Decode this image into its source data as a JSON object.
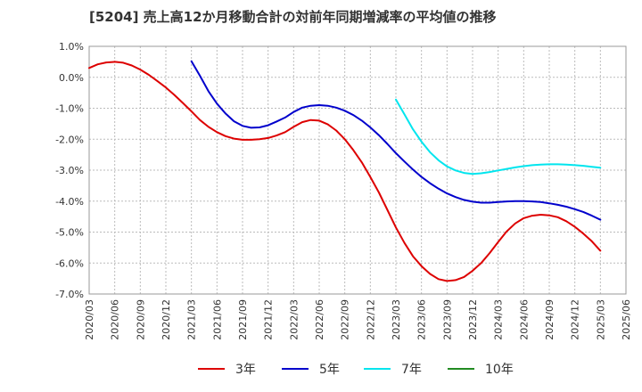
{
  "chart_data": {
    "type": "line",
    "title": "[5204]  売上高12か月移動合計の対前年同期増減率の平均値の推移",
    "xlabel": "",
    "ylabel": "",
    "ylim": [
      -7.0,
      1.0
    ],
    "y_ticks": [
      "1.0%",
      "0.0%",
      "-1.0%",
      "-2.0%",
      "-3.0%",
      "-4.0%",
      "-5.0%",
      "-6.0%",
      "-7.0%"
    ],
    "x_ticks": [
      "2020/03",
      "2020/06",
      "2020/09",
      "2020/12",
      "2021/03",
      "2021/06",
      "2021/09",
      "2021/12",
      "2022/03",
      "2022/06",
      "2022/09",
      "2022/12",
      "2023/03",
      "2023/06",
      "2023/09",
      "2023/12",
      "2024/03",
      "2024/06",
      "2024/09",
      "2024/12",
      "2025/03",
      "2025/06"
    ],
    "grid": true,
    "legend_position": "bottom",
    "series": [
      {
        "name": "3年",
        "color": "#dd0000",
        "x": [
          "2020/03",
          "2020/04",
          "2020/05",
          "2020/06",
          "2020/07",
          "2020/08",
          "2020/09",
          "2020/10",
          "2020/11",
          "2020/12",
          "2021/01",
          "2021/02",
          "2021/03",
          "2021/04",
          "2021/05",
          "2021/06",
          "2021/07",
          "2021/08",
          "2021/09",
          "2021/10",
          "2021/11",
          "2021/12",
          "2022/01",
          "2022/02",
          "2022/03",
          "2022/04",
          "2022/05",
          "2022/06",
          "2022/07",
          "2022/08",
          "2022/09",
          "2022/10",
          "2022/11",
          "2022/12",
          "2023/01",
          "2023/02",
          "2023/03",
          "2023/04",
          "2023/05",
          "2023/06",
          "2023/07",
          "2023/08",
          "2023/09",
          "2023/10",
          "2023/11",
          "2023/12",
          "2024/01",
          "2024/02",
          "2024/03",
          "2024/04",
          "2024/05",
          "2024/06",
          "2024/07",
          "2024/08",
          "2024/09",
          "2024/10",
          "2024/11",
          "2024/12",
          "2025/01",
          "2025/02",
          "2025/03"
        ],
        "values": [
          0.3,
          0.42,
          0.48,
          0.5,
          0.47,
          0.38,
          0.25,
          0.08,
          -0.12,
          -0.33,
          -0.57,
          -0.83,
          -1.1,
          -1.38,
          -1.6,
          -1.77,
          -1.9,
          -1.98,
          -2.02,
          -2.02,
          -2.0,
          -1.96,
          -1.88,
          -1.77,
          -1.6,
          -1.45,
          -1.38,
          -1.4,
          -1.52,
          -1.72,
          -2.0,
          -2.35,
          -2.75,
          -3.22,
          -3.72,
          -4.28,
          -4.85,
          -5.35,
          -5.78,
          -6.1,
          -6.35,
          -6.52,
          -6.58,
          -6.55,
          -6.45,
          -6.25,
          -6.0,
          -5.68,
          -5.32,
          -4.98,
          -4.72,
          -4.55,
          -4.47,
          -4.44,
          -4.46,
          -4.52,
          -4.65,
          -4.83,
          -5.05,
          -5.3,
          -5.6
        ]
      },
      {
        "name": "5年",
        "color": "#0000cc",
        "x": [
          "2021/03",
          "2021/04",
          "2021/05",
          "2021/06",
          "2021/07",
          "2021/08",
          "2021/09",
          "2021/10",
          "2021/11",
          "2021/12",
          "2022/01",
          "2022/02",
          "2022/03",
          "2022/04",
          "2022/05",
          "2022/06",
          "2022/07",
          "2022/08",
          "2022/09",
          "2022/10",
          "2022/11",
          "2022/12",
          "2023/01",
          "2023/02",
          "2023/03",
          "2023/04",
          "2023/05",
          "2023/06",
          "2023/07",
          "2023/08",
          "2023/09",
          "2023/10",
          "2023/11",
          "2023/12",
          "2024/01",
          "2024/02",
          "2024/03",
          "2024/04",
          "2024/05",
          "2024/06",
          "2024/07",
          "2024/08",
          "2024/09",
          "2024/10",
          "2024/11",
          "2024/12",
          "2025/01",
          "2025/02",
          "2025/03"
        ],
        "values": [
          0.52,
          0.05,
          -0.45,
          -0.85,
          -1.17,
          -1.42,
          -1.57,
          -1.63,
          -1.62,
          -1.55,
          -1.43,
          -1.3,
          -1.12,
          -0.98,
          -0.92,
          -0.9,
          -0.92,
          -0.98,
          -1.08,
          -1.22,
          -1.4,
          -1.62,
          -1.87,
          -2.15,
          -2.45,
          -2.72,
          -2.98,
          -3.22,
          -3.42,
          -3.6,
          -3.75,
          -3.87,
          -3.96,
          -4.02,
          -4.05,
          -4.05,
          -4.03,
          -4.01,
          -4.0,
          -4.0,
          -4.01,
          -4.03,
          -4.07,
          -4.12,
          -4.18,
          -4.26,
          -4.35,
          -4.47,
          -4.6
        ]
      },
      {
        "name": "7年",
        "color": "#00e5ee",
        "x": [
          "2023/03",
          "2023/04",
          "2023/05",
          "2023/06",
          "2023/07",
          "2023/08",
          "2023/09",
          "2023/10",
          "2023/11",
          "2023/12",
          "2024/01",
          "2024/02",
          "2024/03",
          "2024/04",
          "2024/05",
          "2024/06",
          "2024/07",
          "2024/08",
          "2024/09",
          "2024/10",
          "2024/11",
          "2024/12",
          "2025/01",
          "2025/02",
          "2025/03"
        ],
        "values": [
          -0.72,
          -1.2,
          -1.68,
          -2.08,
          -2.42,
          -2.68,
          -2.88,
          -3.01,
          -3.09,
          -3.12,
          -3.1,
          -3.06,
          -3.01,
          -2.96,
          -2.91,
          -2.87,
          -2.84,
          -2.82,
          -2.81,
          -2.81,
          -2.82,
          -2.84,
          -2.86,
          -2.89,
          -2.92
        ]
      },
      {
        "name": "10年",
        "color": "#228b22",
        "x": [],
        "values": []
      }
    ]
  }
}
